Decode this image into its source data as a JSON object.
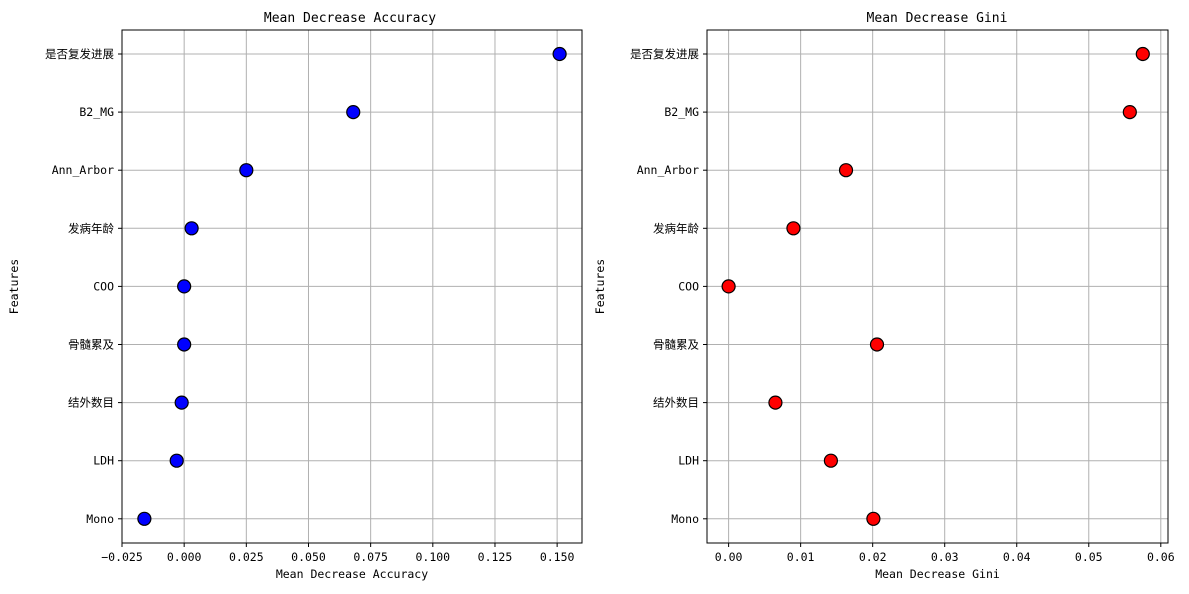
{
  "chart_data": [
    {
      "type": "scatter",
      "title": "Mean Decrease Accuracy",
      "xlabel": "Mean Decrease Accuracy",
      "ylabel": "Features",
      "xlim": [
        -0.025,
        0.16
      ],
      "xticks": [
        -0.025,
        0.0,
        0.025,
        0.05,
        0.075,
        0.1,
        0.125,
        0.15
      ],
      "xtick_labels": [
        "−0.025",
        "0.000",
        "0.025",
        "0.050",
        "0.075",
        "0.100",
        "0.125",
        "0.150"
      ],
      "categories": [
        "是否复发进展",
        "B2_MG",
        "Ann_Arbor",
        "发病年龄",
        "COO",
        "骨髓累及",
        "结外数目",
        "LDH",
        "Mono"
      ],
      "values": [
        0.151,
        0.068,
        0.025,
        0.003,
        0.0,
        0.0,
        -0.001,
        -0.003,
        -0.016
      ],
      "color": "#0000ff",
      "grid": true
    },
    {
      "type": "scatter",
      "title": "Mean Decrease Gini",
      "xlabel": "Mean Decrease Gini",
      "ylabel": "Features",
      "xlim": [
        -0.003,
        0.061
      ],
      "xticks": [
        0.0,
        0.01,
        0.02,
        0.03,
        0.04,
        0.05,
        0.06
      ],
      "xtick_labels": [
        "0.00",
        "0.01",
        "0.02",
        "0.03",
        "0.04",
        "0.05",
        "0.06"
      ],
      "categories": [
        "是否复发进展",
        "B2_MG",
        "Ann_Arbor",
        "发病年龄",
        "COO",
        "骨髓累及",
        "结外数目",
        "LDH",
        "Mono"
      ],
      "values": [
        0.0575,
        0.0557,
        0.0163,
        0.009,
        0.0,
        0.0206,
        0.0065,
        0.0142,
        0.0201
      ],
      "color": "#ff0000",
      "grid": true
    }
  ]
}
